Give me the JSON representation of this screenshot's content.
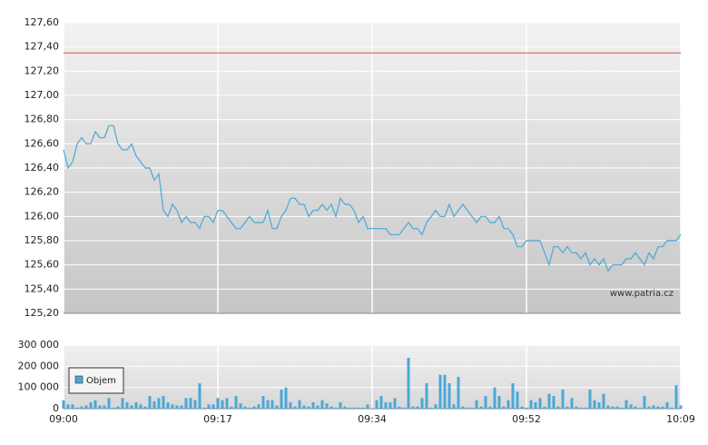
{
  "chart_data": [
    {
      "type": "line",
      "series": [
        {
          "color": "#4aa8d8",
          "values": [
            126.55,
            126.4,
            126.45,
            126.6,
            126.65,
            126.6,
            126.6,
            126.7,
            126.65,
            126.65,
            126.75,
            126.75,
            126.6,
            126.55,
            126.55,
            126.6,
            126.5,
            126.45,
            126.4,
            126.4,
            126.3,
            126.35,
            126.05,
            126.0,
            126.1,
            126.05,
            125.95,
            126.0,
            125.95,
            125.95,
            125.9,
            126.0,
            126.0,
            125.95,
            126.05,
            126.05,
            126.0,
            125.95,
            125.9,
            125.9,
            125.95,
            126.0,
            125.95,
            125.95,
            125.95,
            126.05,
            125.9,
            125.9,
            126.0,
            126.05,
            126.15,
            126.15,
            126.1,
            126.1,
            126.0,
            126.05,
            126.05,
            126.1,
            126.05,
            126.1,
            126.0,
            126.15,
            126.1,
            126.1,
            126.05,
            125.95,
            126.0,
            125.9,
            125.9,
            125.9,
            125.9,
            125.9,
            125.85,
            125.85,
            125.85,
            125.9,
            125.95,
            125.9,
            125.9,
            125.85,
            125.95,
            126.0,
            126.05,
            126.0,
            126.0,
            126.1,
            126.0,
            126.05,
            126.1,
            126.05,
            126.0,
            125.95,
            126.0,
            126.0,
            125.95,
            125.95,
            126.0,
            125.9,
            125.9,
            125.85,
            125.75,
            125.75,
            125.8,
            125.8,
            125.8,
            125.8,
            125.7,
            125.6,
            125.75,
            125.75,
            125.7,
            125.75,
            125.7,
            125.7,
            125.65,
            125.7,
            125.6,
            125.65,
            125.6,
            125.65,
            125.55,
            125.6,
            125.6,
            125.6,
            125.65,
            125.65,
            125.7,
            125.65,
            125.6,
            125.7,
            125.65,
            125.75,
            125.75,
            125.8,
            125.8,
            125.8,
            125.85
          ]
        }
      ],
      "reference_line": {
        "value": 127.35,
        "color": "#e06050"
      },
      "xlim": [
        0,
        136
      ],
      "ylim": [
        125.2,
        127.6
      ],
      "yticks": [
        {
          "value": 125.2,
          "label": "125,20"
        },
        {
          "value": 125.4,
          "label": "125,40"
        },
        {
          "value": 125.6,
          "label": "125,60"
        },
        {
          "value": 125.8,
          "label": "125,80"
        },
        {
          "value": 126.0,
          "label": "126,00"
        },
        {
          "value": 126.2,
          "label": "126,20"
        },
        {
          "value": 126.4,
          "label": "126,40"
        },
        {
          "value": 126.6,
          "label": "126,60"
        },
        {
          "value": 126.8,
          "label": "126,80"
        },
        {
          "value": 127.0,
          "label": "127,00"
        },
        {
          "value": 127.2,
          "label": "127,20"
        },
        {
          "value": 127.4,
          "label": "127,40"
        },
        {
          "value": 127.6,
          "label": "127,60"
        }
      ],
      "grid": true,
      "annotation": "www.patria.cz"
    },
    {
      "type": "bar",
      "series": [
        {
          "name": "Objem",
          "color": "#4aa8d8",
          "values": [
            40000,
            20000,
            20000,
            5000,
            10000,
            15000,
            30000,
            40000,
            15000,
            15000,
            50000,
            5000,
            10000,
            50000,
            30000,
            15000,
            30000,
            20000,
            10000,
            60000,
            35000,
            50000,
            60000,
            30000,
            20000,
            15000,
            15000,
            50000,
            50000,
            40000,
            120000,
            5000,
            20000,
            20000,
            50000,
            40000,
            50000,
            10000,
            60000,
            25000,
            10000,
            5000,
            10000,
            20000,
            60000,
            40000,
            40000,
            15000,
            90000,
            100000,
            30000,
            10000,
            40000,
            15000,
            10000,
            30000,
            15000,
            40000,
            25000,
            10000,
            5000,
            30000,
            10000,
            5000,
            5000,
            5000,
            5000,
            20000,
            0,
            40000,
            60000,
            30000,
            30000,
            50000,
            10000,
            5000,
            240000,
            10000,
            10000,
            50000,
            120000,
            5000,
            20000,
            160000,
            160000,
            120000,
            20000,
            150000,
            10000,
            5000,
            5000,
            40000,
            10000,
            60000,
            10000,
            100000,
            60000,
            10000,
            40000,
            120000,
            80000,
            10000,
            5000,
            40000,
            30000,
            50000,
            10000,
            70000,
            60000,
            10000,
            90000,
            10000,
            50000,
            10000,
            5000,
            5000,
            90000,
            40000,
            30000,
            70000,
            15000,
            10000,
            10000,
            5000,
            40000,
            20000,
            10000,
            5000,
            60000,
            10000,
            15000,
            10000,
            10000,
            30000,
            5000,
            110000,
            15000
          ]
        }
      ],
      "xlim": [
        0,
        136
      ],
      "xticks": [
        {
          "value": 0,
          "label": "09:00"
        },
        {
          "value": 34,
          "label": "09:17"
        },
        {
          "value": 68,
          "label": "09:34"
        },
        {
          "value": 102,
          "label": "09:52"
        },
        {
          "value": 136,
          "label": "10:09"
        }
      ],
      "ylim": [
        0,
        300000
      ],
      "yticks": [
        0,
        {
          "value": 100000,
          "label": "100 000"
        },
        {
          "value": 200000,
          "label": "200 000"
        },
        {
          "value": 300000,
          "label": "300 000"
        }
      ],
      "grid": true,
      "legend": "lower left"
    }
  ]
}
